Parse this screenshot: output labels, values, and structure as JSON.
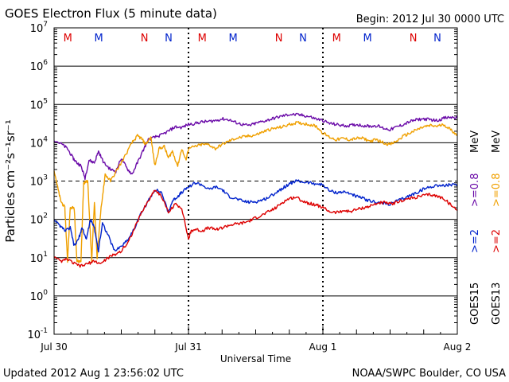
{
  "header": {
    "title": "GOES Electron Flux (5 minute data)",
    "begin": "Begin: 2012 Jul 30 0000 UTC"
  },
  "footer": {
    "updated": "Updated 2012 Aug  1 23:56:02 UTC",
    "credit": "NOAA/SWPC Boulder, CO USA"
  },
  "colors": {
    "goes15_gt0_8": "#6a0aa8",
    "goes13_gt0_8": "#f0a000",
    "goes15_gt2": "#0022cc",
    "goes13_gt2": "#dd0000",
    "marker_m": "#dd0000",
    "marker_n_red": "#dd0000",
    "marker_n_blue": "#0022cc",
    "marker_m_blue": "#0022cc"
  },
  "right_labels": {
    "goes15": "GOES15",
    "goes13": "GOES13",
    "gt2_15": ">=2",
    "gt08_15": ">=0.8",
    "mev_15": "MeV",
    "gt2_13": ">=2",
    "gt08_13": ">=0.8",
    "mev_13": "MeV"
  },
  "markers": [
    {
      "label": "M",
      "color": "red",
      "day": 0.25
    },
    {
      "label": "M",
      "color": "blue",
      "day": 0.48
    },
    {
      "label": "N",
      "color": "red",
      "day": 0.82
    },
    {
      "label": "N",
      "color": "blue",
      "day": 1.0
    },
    {
      "label": "M",
      "color": "red",
      "day": 1.25
    },
    {
      "label": "M",
      "color": "blue",
      "day": 1.48
    },
    {
      "label": "N",
      "color": "red",
      "day": 1.82
    },
    {
      "label": "N",
      "color": "blue",
      "day": 2.0
    },
    {
      "label": "M",
      "color": "red",
      "day": 2.25
    },
    {
      "label": "M",
      "color": "blue",
      "day": 2.48
    },
    {
      "label": "N",
      "color": "red",
      "day": 2.82
    },
    {
      "label": "N",
      "color": "blue",
      "day": 3.0
    }
  ],
  "chart_data": {
    "type": "line",
    "title": "GOES Electron Flux (5 minute data)",
    "xlabel": "Universal Time",
    "ylabel": "Particles cm⁻²s⁻¹sr⁻¹",
    "y_scale": "log",
    "ylim": [
      0.1,
      10000000
    ],
    "xlim_days": [
      0,
      3
    ],
    "x_tick_labels": [
      {
        "day": 0,
        "label": "Jul 30"
      },
      {
        "day": 1,
        "label": "Jul 31"
      },
      {
        "day": 2,
        "label": "Aug 1"
      },
      {
        "day": 3,
        "label": "Aug 2"
      }
    ],
    "y_tick_labels": [
      {
        "exp": -1,
        "mant": "10",
        "sup": "-1"
      },
      {
        "exp": 0,
        "mant": "10",
        "sup": "0"
      },
      {
        "exp": 1,
        "mant": "10",
        "sup": "1"
      },
      {
        "exp": 2,
        "mant": "10",
        "sup": "2"
      },
      {
        "exp": 3,
        "mant": "10",
        "sup": "3"
      },
      {
        "exp": 4,
        "mant": "10",
        "sup": "4"
      },
      {
        "exp": 5,
        "mant": "10",
        "sup": "5"
      },
      {
        "exp": 6,
        "mant": "10",
        "sup": "6"
      },
      {
        "exp": 7,
        "mant": "10",
        "sup": "7"
      }
    ],
    "threshold": 1000,
    "series": [
      {
        "name": "GOES15 >=0.8 MeV",
        "color": "#6a0aa8",
        "points": [
          [
            0,
            12000
          ],
          [
            0.06,
            9000
          ],
          [
            0.1,
            7000
          ],
          [
            0.14,
            4000
          ],
          [
            0.17,
            3000
          ],
          [
            0.2,
            2500
          ],
          [
            0.23,
            1200
          ],
          [
            0.26,
            3500
          ],
          [
            0.3,
            3000
          ],
          [
            0.33,
            6000
          ],
          [
            0.37,
            3000
          ],
          [
            0.42,
            2000
          ],
          [
            0.46,
            1800
          ],
          [
            0.5,
            4000
          ],
          [
            0.54,
            2200
          ],
          [
            0.58,
            1500
          ],
          [
            0.62,
            3000
          ],
          [
            0.66,
            6000
          ],
          [
            0.7,
            12000
          ],
          [
            0.75,
            14000
          ],
          [
            0.8,
            16000
          ],
          [
            0.85,
            20000
          ],
          [
            0.9,
            26000
          ],
          [
            0.95,
            25000
          ],
          [
            1.0,
            30000
          ],
          [
            1.05,
            32000
          ],
          [
            1.1,
            35000
          ],
          [
            1.15,
            36000
          ],
          [
            1.2,
            38000
          ],
          [
            1.25,
            42000
          ],
          [
            1.3,
            40000
          ],
          [
            1.35,
            34000
          ],
          [
            1.4,
            30000
          ],
          [
            1.45,
            28000
          ],
          [
            1.5,
            32000
          ],
          [
            1.55,
            36000
          ],
          [
            1.6,
            40000
          ],
          [
            1.65,
            45000
          ],
          [
            1.7,
            50000
          ],
          [
            1.75,
            55000
          ],
          [
            1.8,
            54000
          ],
          [
            1.85,
            52000
          ],
          [
            1.9,
            48000
          ],
          [
            1.95,
            42000
          ],
          [
            2.0,
            38000
          ],
          [
            2.05,
            32000
          ],
          [
            2.1,
            30000
          ],
          [
            2.15,
            28000
          ],
          [
            2.2,
            28000
          ],
          [
            2.25,
            30000
          ],
          [
            2.3,
            28000
          ],
          [
            2.35,
            27000
          ],
          [
            2.4,
            28000
          ],
          [
            2.45,
            24000
          ],
          [
            2.5,
            22000
          ],
          [
            2.55,
            26000
          ],
          [
            2.6,
            30000
          ],
          [
            2.65,
            36000
          ],
          [
            2.7,
            40000
          ],
          [
            2.75,
            42000
          ],
          [
            2.8,
            40000
          ],
          [
            2.85,
            38000
          ],
          [
            2.9,
            44000
          ],
          [
            2.95,
            46000
          ],
          [
            3.0,
            45000
          ]
        ]
      },
      {
        "name": "GOES13 >=0.8 MeV",
        "color": "#f0a000",
        "points": [
          [
            0,
            2000
          ],
          [
            0.03,
            600
          ],
          [
            0.05,
            300
          ],
          [
            0.08,
            200
          ],
          [
            0.1,
            8
          ],
          [
            0.12,
            200
          ],
          [
            0.15,
            200
          ],
          [
            0.17,
            8
          ],
          [
            0.2,
            8
          ],
          [
            0.22,
            900
          ],
          [
            0.25,
            1000
          ],
          [
            0.28,
            8
          ],
          [
            0.3,
            300
          ],
          [
            0.32,
            10
          ],
          [
            0.35,
            200
          ],
          [
            0.38,
            1500
          ],
          [
            0.42,
            1000
          ],
          [
            0.47,
            2000
          ],
          [
            0.52,
            4000
          ],
          [
            0.58,
            10000
          ],
          [
            0.62,
            15000
          ],
          [
            0.65,
            13000
          ],
          [
            0.68,
            9000
          ],
          [
            0.72,
            14000
          ],
          [
            0.75,
            2500
          ],
          [
            0.78,
            7000
          ],
          [
            0.82,
            8000
          ],
          [
            0.85,
            4000
          ],
          [
            0.88,
            6000
          ],
          [
            0.92,
            2500
          ],
          [
            0.95,
            7000
          ],
          [
            0.98,
            3500
          ],
          [
            1.0,
            7000
          ],
          [
            1.05,
            8000
          ],
          [
            1.1,
            9000
          ],
          [
            1.15,
            9000
          ],
          [
            1.2,
            7000
          ],
          [
            1.25,
            9000
          ],
          [
            1.3,
            11000
          ],
          [
            1.35,
            13000
          ],
          [
            1.4,
            14000
          ],
          [
            1.45,
            15000
          ],
          [
            1.5,
            16000
          ],
          [
            1.55,
            19000
          ],
          [
            1.6,
            22000
          ],
          [
            1.65,
            24000
          ],
          [
            1.7,
            26000
          ],
          [
            1.75,
            30000
          ],
          [
            1.8,
            33000
          ],
          [
            1.85,
            32000
          ],
          [
            1.9,
            30000
          ],
          [
            1.95,
            27000
          ],
          [
            2.0,
            18000
          ],
          [
            2.05,
            14000
          ],
          [
            2.1,
            12000
          ],
          [
            2.15,
            13000
          ],
          [
            2.2,
            12000
          ],
          [
            2.25,
            13000
          ],
          [
            2.3,
            13000
          ],
          [
            2.35,
            11000
          ],
          [
            2.4,
            12000
          ],
          [
            2.45,
            10000
          ],
          [
            2.5,
            9000
          ],
          [
            2.55,
            11000
          ],
          [
            2.6,
            15000
          ],
          [
            2.65,
            18000
          ],
          [
            2.7,
            22000
          ],
          [
            2.75,
            26000
          ],
          [
            2.8,
            28000
          ],
          [
            2.85,
            27000
          ],
          [
            2.9,
            30000
          ],
          [
            2.95,
            22000
          ],
          [
            3.0,
            16000
          ]
        ]
      },
      {
        "name": "GOES15 >=2 MeV",
        "color": "#0022cc",
        "points": [
          [
            0,
            90
          ],
          [
            0.04,
            70
          ],
          [
            0.08,
            50
          ],
          [
            0.12,
            60
          ],
          [
            0.15,
            20
          ],
          [
            0.18,
            30
          ],
          [
            0.21,
            60
          ],
          [
            0.24,
            30
          ],
          [
            0.27,
            100
          ],
          [
            0.3,
            60
          ],
          [
            0.33,
            15
          ],
          [
            0.36,
            80
          ],
          [
            0.4,
            40
          ],
          [
            0.45,
            15
          ],
          [
            0.5,
            20
          ],
          [
            0.55,
            30
          ],
          [
            0.6,
            60
          ],
          [
            0.65,
            150
          ],
          [
            0.7,
            300
          ],
          [
            0.75,
            600
          ],
          [
            0.8,
            500
          ],
          [
            0.85,
            150
          ],
          [
            0.88,
            300
          ],
          [
            0.92,
            400
          ],
          [
            0.95,
            500
          ],
          [
            1.0,
            700
          ],
          [
            1.05,
            900
          ],
          [
            1.1,
            800
          ],
          [
            1.15,
            600
          ],
          [
            1.2,
            700
          ],
          [
            1.25,
            600
          ],
          [
            1.3,
            400
          ],
          [
            1.35,
            350
          ],
          [
            1.4,
            300
          ],
          [
            1.45,
            280
          ],
          [
            1.5,
            290
          ],
          [
            1.55,
            320
          ],
          [
            1.6,
            380
          ],
          [
            1.65,
            500
          ],
          [
            1.7,
            650
          ],
          [
            1.75,
            850
          ],
          [
            1.8,
            1000
          ],
          [
            1.85,
            950
          ],
          [
            1.9,
            900
          ],
          [
            1.95,
            850
          ],
          [
            2.0,
            800
          ],
          [
            2.05,
            550
          ],
          [
            2.1,
            500
          ],
          [
            2.15,
            520
          ],
          [
            2.2,
            480
          ],
          [
            2.25,
            400
          ],
          [
            2.3,
            350
          ],
          [
            2.35,
            300
          ],
          [
            2.4,
            280
          ],
          [
            2.45,
            260
          ],
          [
            2.5,
            250
          ],
          [
            2.55,
            300
          ],
          [
            2.6,
            350
          ],
          [
            2.65,
            420
          ],
          [
            2.7,
            500
          ],
          [
            2.75,
            620
          ],
          [
            2.8,
            700
          ],
          [
            2.85,
            780
          ],
          [
            2.9,
            750
          ],
          [
            2.95,
            800
          ],
          [
            3.0,
            750
          ]
        ]
      },
      {
        "name": "GOES13 >=2 MeV",
        "color": "#dd0000",
        "points": [
          [
            0,
            10
          ],
          [
            0.05,
            8
          ],
          [
            0.1,
            9
          ],
          [
            0.15,
            7
          ],
          [
            0.2,
            6
          ],
          [
            0.25,
            7
          ],
          [
            0.3,
            8
          ],
          [
            0.35,
            7
          ],
          [
            0.4,
            10
          ],
          [
            0.45,
            12
          ],
          [
            0.5,
            15
          ],
          [
            0.55,
            25
          ],
          [
            0.6,
            60
          ],
          [
            0.65,
            150
          ],
          [
            0.7,
            300
          ],
          [
            0.75,
            600
          ],
          [
            0.8,
            400
          ],
          [
            0.85,
            150
          ],
          [
            0.9,
            250
          ],
          [
            0.95,
            200
          ],
          [
            1.0,
            30
          ],
          [
            1.02,
            50
          ],
          [
            1.05,
            55
          ],
          [
            1.1,
            50
          ],
          [
            1.15,
            60
          ],
          [
            1.2,
            55
          ],
          [
            1.25,
            60
          ],
          [
            1.3,
            70
          ],
          [
            1.35,
            75
          ],
          [
            1.4,
            80
          ],
          [
            1.45,
            90
          ],
          [
            1.5,
            110
          ],
          [
            1.55,
            130
          ],
          [
            1.6,
            160
          ],
          [
            1.65,
            200
          ],
          [
            1.7,
            280
          ],
          [
            1.75,
            350
          ],
          [
            1.8,
            380
          ],
          [
            1.85,
            300
          ],
          [
            1.9,
            260
          ],
          [
            1.95,
            240
          ],
          [
            2.0,
            200
          ],
          [
            2.05,
            160
          ],
          [
            2.1,
            150
          ],
          [
            2.15,
            170
          ],
          [
            2.2,
            160
          ],
          [
            2.25,
            180
          ],
          [
            2.3,
            200
          ],
          [
            2.35,
            220
          ],
          [
            2.4,
            260
          ],
          [
            2.45,
            280
          ],
          [
            2.5,
            250
          ],
          [
            2.55,
            280
          ],
          [
            2.6,
            320
          ],
          [
            2.65,
            350
          ],
          [
            2.7,
            380
          ],
          [
            2.75,
            420
          ],
          [
            2.8,
            440
          ],
          [
            2.85,
            400
          ],
          [
            2.9,
            350
          ],
          [
            2.95,
            240
          ],
          [
            3.0,
            170
          ]
        ]
      }
    ]
  }
}
